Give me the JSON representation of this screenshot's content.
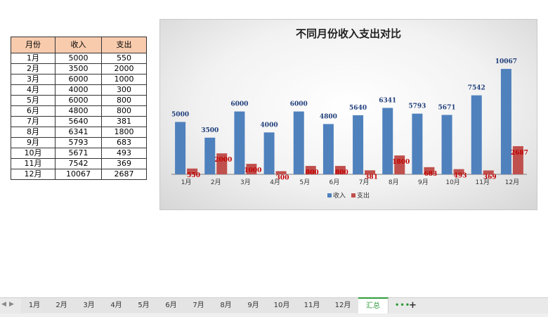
{
  "table": {
    "headers": [
      "月份",
      "收入",
      "支出"
    ],
    "rows": [
      [
        "1月",
        "5000",
        "550"
      ],
      [
        "2月",
        "3500",
        "2000"
      ],
      [
        "3月",
        "6000",
        "1000"
      ],
      [
        "4月",
        "4000",
        "300"
      ],
      [
        "5月",
        "6000",
        "800"
      ],
      [
        "6月",
        "4800",
        "800"
      ],
      [
        "7月",
        "5640",
        "381"
      ],
      [
        "8月",
        "6341",
        "1800"
      ],
      [
        "9月",
        "5793",
        "683"
      ],
      [
        "10月",
        "5671",
        "493"
      ],
      [
        "11月",
        "7542",
        "369"
      ],
      [
        "12月",
        "10067",
        "2687"
      ]
    ]
  },
  "chart_data": {
    "type": "bar",
    "title": "不同月份收入支出对比",
    "categories": [
      "1月",
      "2月",
      "3月",
      "4月",
      "5月",
      "6月",
      "7月",
      "8月",
      "9月",
      "10月",
      "11月",
      "12月"
    ],
    "series": [
      {
        "name": "收入",
        "color": "#4f81bd",
        "label_color": "#1f3d7a",
        "values": [
          5000,
          3500,
          6000,
          4000,
          6000,
          4800,
          5640,
          6341,
          5793,
          5671,
          7542,
          10067
        ]
      },
      {
        "name": "支出",
        "color": "#c0504d",
        "label_color": "#c00000",
        "values": [
          550,
          2000,
          1000,
          300,
          800,
          800,
          381,
          1800,
          683,
          493,
          369,
          2687
        ]
      }
    ],
    "ylim": [
      0,
      10067
    ],
    "grid": false,
    "legend_position": "bottom",
    "data_labels": true
  },
  "sheet_tabs": {
    "tabs": [
      "1月",
      "2月",
      "3月",
      "4月",
      "5月",
      "6月",
      "7月",
      "8月",
      "9月",
      "10月",
      "11月",
      "12月",
      "汇总"
    ],
    "active": "汇总",
    "more": "•••",
    "add": "+"
  }
}
